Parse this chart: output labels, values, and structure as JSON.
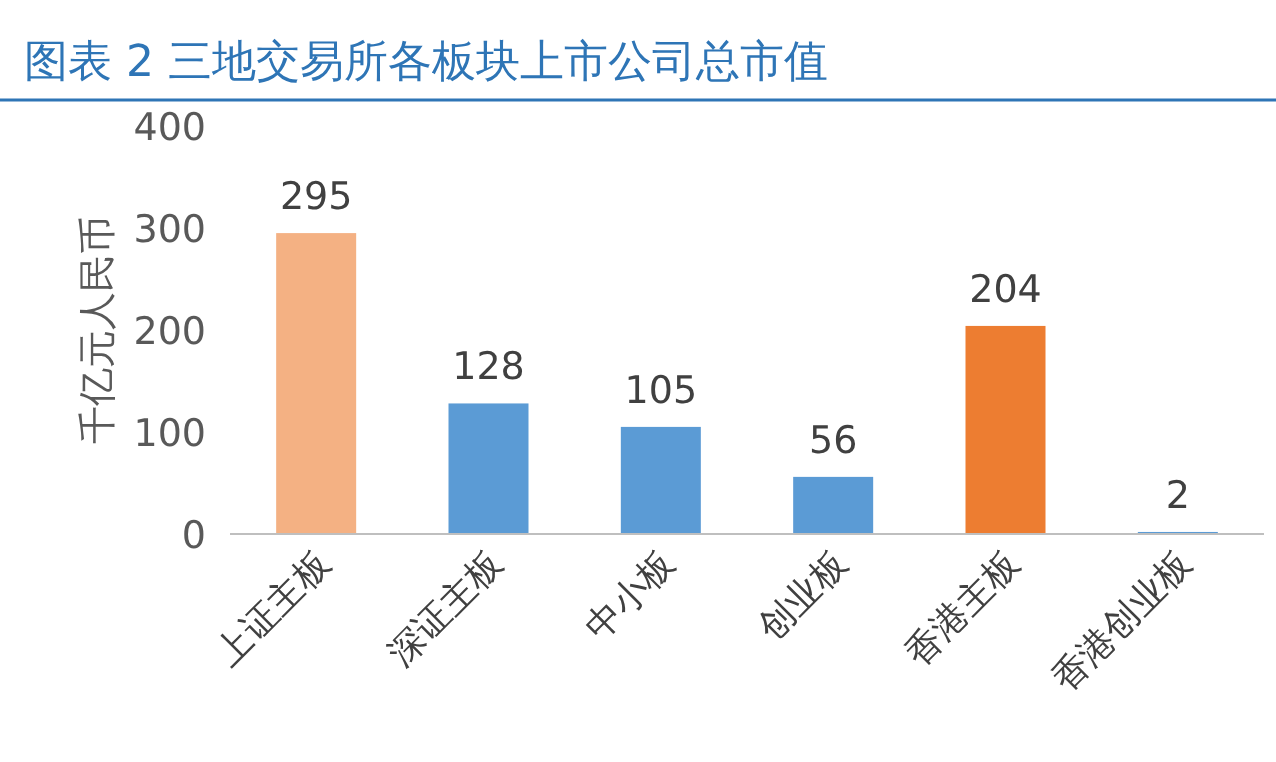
{
  "chart_data": {
    "type": "bar",
    "title": "图表 2 三地交易所各板块上市公司总市值",
    "ylabel": "千亿元人民币",
    "categories": [
      "上证主板",
      "深证主板",
      "中小板",
      "创业板",
      "香港主板",
      "香港创业板"
    ],
    "values": [
      295,
      128,
      105,
      56,
      204,
      2
    ],
    "colors": [
      "#f4b183",
      "#5b9bd5",
      "#5b9bd5",
      "#5b9bd5",
      "#ed7d31",
      "#5b9bd5"
    ],
    "ylim": [
      0,
      400
    ],
    "yticks": [
      0,
      100,
      200,
      300,
      400
    ],
    "data_labels": true,
    "grid": false
  }
}
